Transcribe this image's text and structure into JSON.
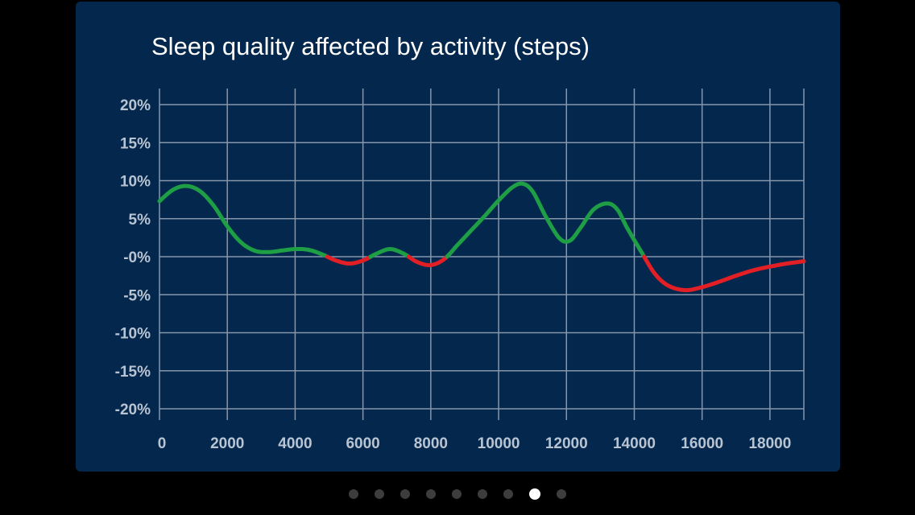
{
  "chart_data": {
    "type": "line",
    "title": "Sleep quality affected by activity (steps)",
    "xlabel": "",
    "ylabel": "",
    "xlim": [
      0,
      19000
    ],
    "ylim": [
      -20,
      20
    ],
    "x_ticks": [
      0,
      2000,
      4000,
      6000,
      8000,
      10000,
      12000,
      14000,
      16000,
      18000
    ],
    "x_tick_labels": [
      "0",
      "2000",
      "4000",
      "6000",
      "8000",
      "10000",
      "12000",
      "14000",
      "16000",
      "18000"
    ],
    "y_ticks": [
      20,
      15,
      10,
      5,
      0,
      -5,
      -10,
      -15,
      -20
    ],
    "y_tick_labels": [
      "20%",
      "15%",
      "10%",
      "5%",
      "-0%",
      "-5%",
      "-10%",
      "-15%",
      "-20%"
    ],
    "grid": true,
    "series": [
      {
        "x": [
          0,
          400,
          800,
          1200,
          1600,
          2000,
          2400,
          2800,
          3200,
          3600,
          4000,
          4400,
          4800,
          5200,
          5600,
          6000,
          6400,
          6800,
          7200,
          7600,
          8000,
          8400,
          8800,
          9200,
          9600,
          10000,
          10400,
          10700,
          11000,
          11400,
          11800,
          12100,
          12400,
          12800,
          13200,
          13500,
          13800,
          14200,
          14600,
          15000,
          15500,
          16000,
          16500,
          17000,
          17500,
          18000,
          18500,
          19000
        ],
        "values": [
          7.3,
          8.8,
          9.3,
          8.6,
          6.7,
          4.0,
          1.9,
          0.8,
          0.6,
          0.8,
          1.0,
          0.9,
          0.3,
          -0.5,
          -0.9,
          -0.5,
          0.4,
          1.0,
          0.4,
          -0.7,
          -1.1,
          -0.3,
          1.6,
          3.5,
          5.4,
          7.4,
          9.1,
          9.6,
          8.6,
          5.2,
          2.4,
          2.1,
          3.7,
          6.2,
          7.0,
          6.2,
          3.7,
          0.7,
          -2.2,
          -3.8,
          -4.4,
          -4.0,
          -3.3,
          -2.5,
          -1.8,
          -1.3,
          -0.9,
          -0.6
        ]
      }
    ],
    "colors": {
      "positive": "#1e9e45",
      "negative": "#e31f26",
      "background": "#03274d",
      "grid": "#8696ab"
    }
  },
  "pager": {
    "count": 9,
    "active_index": 7
  }
}
